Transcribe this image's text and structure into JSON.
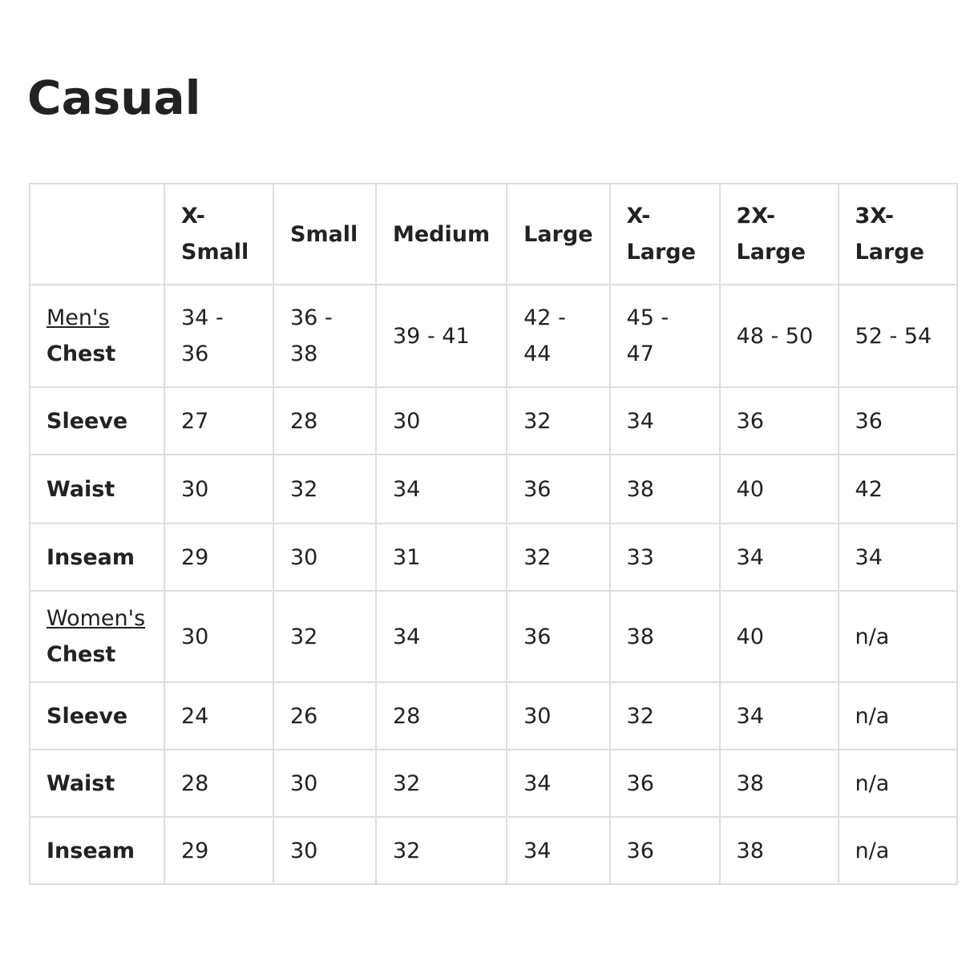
{
  "title": "Casual",
  "headers": [
    "",
    "X-\nSmall",
    "Small",
    "Medium",
    "Large",
    "X-\nLarge",
    "2X-\nLarge",
    "3X-\nLarge"
  ],
  "rows": [
    {
      "group": "Men's",
      "label": "Chest",
      "values": [
        "34 - 36",
        "36 -\n38",
        "39 - 41",
        "42 -\n44",
        "45 - 47",
        "48 - 50",
        "52 - 54"
      ]
    },
    {
      "label": "Sleeve",
      "values": [
        "27",
        "28",
        "30",
        "32",
        "34",
        "36",
        "36"
      ]
    },
    {
      "label": "Waist",
      "values": [
        "30",
        "32",
        "34",
        "36",
        "38",
        "40",
        "42"
      ]
    },
    {
      "label": "Inseam",
      "values": [
        "29",
        "30",
        "31",
        "32",
        "33",
        "34",
        "34"
      ]
    },
    {
      "group": "Women's",
      "label": "Chest",
      "values": [
        "30",
        "32",
        "34",
        "36",
        "38",
        "40",
        "n/a"
      ]
    },
    {
      "label": "Sleeve",
      "values": [
        "24",
        "26",
        "28",
        "30",
        "32",
        "34",
        "n/a"
      ]
    },
    {
      "label": "Waist",
      "values": [
        "28",
        "30",
        "32",
        "34",
        "36",
        "38",
        "n/a"
      ]
    },
    {
      "label": "Inseam",
      "values": [
        "29",
        "30",
        "32",
        "34",
        "36",
        "38",
        "n/a"
      ]
    }
  ]
}
